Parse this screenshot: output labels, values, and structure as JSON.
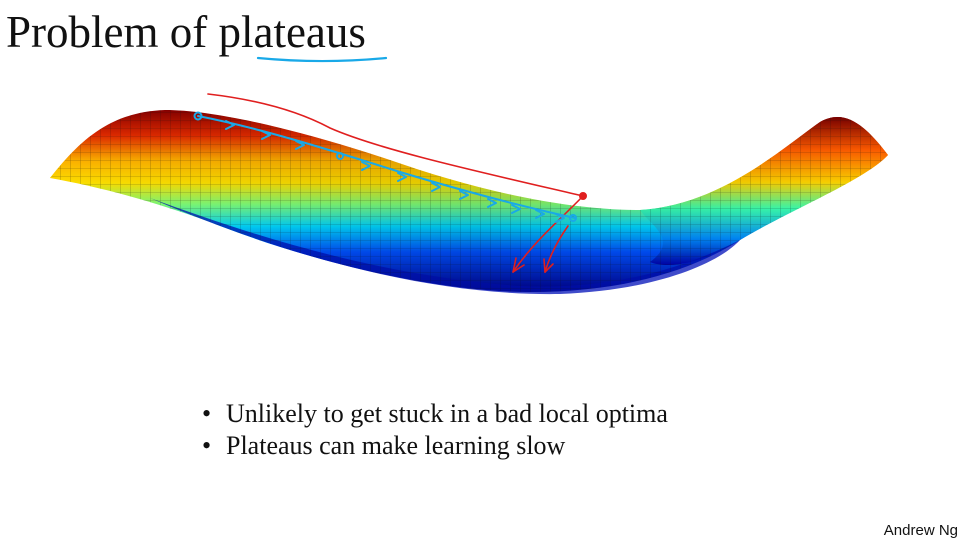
{
  "slide": {
    "title": "Problem of plateaus",
    "bullets": [
      {
        "text": "Unlikely to get stuck in a bad local optima"
      },
      {
        "text": "Plateaus can make learning slow"
      }
    ],
    "credit": "Andrew Ng",
    "bullet_marker": "•"
  },
  "colors": {
    "annotation_blue": "#19a9e8",
    "annotation_red": "#e01f1f",
    "surface_colormap": [
      "#00008f",
      "#0050ff",
      "#00d6ff",
      "#7dff7a",
      "#ffe100",
      "#ff4a00",
      "#8a0000"
    ]
  },
  "icons": {
    "bullet": "bullet-dot",
    "surface": "plateau-surface-3d-plot"
  }
}
